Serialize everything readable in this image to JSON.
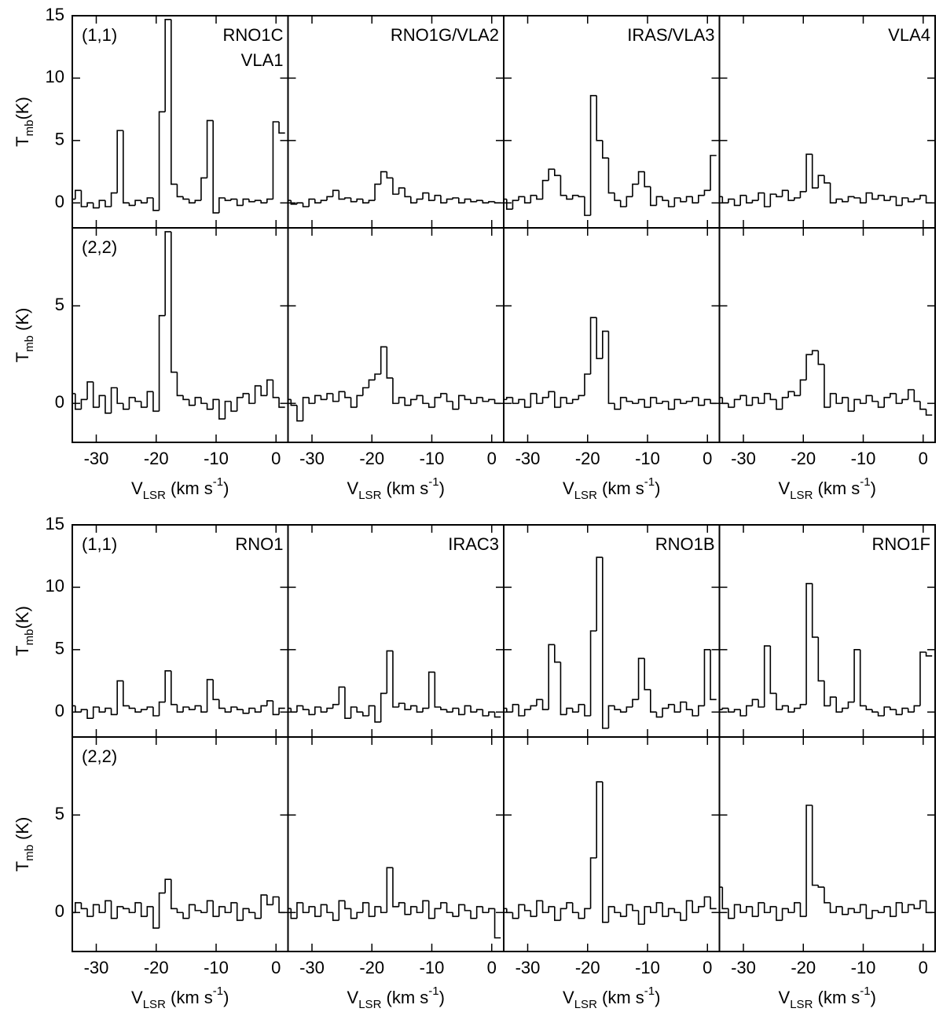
{
  "chart_data": {
    "type": "step",
    "color": "#000000",
    "x": [
      -34,
      -33,
      -32,
      -31,
      -30,
      -29,
      -28,
      -27,
      -26,
      -25,
      -24,
      -23,
      -22,
      -21,
      -20,
      -19,
      -18,
      -17,
      -16,
      -15,
      -14,
      -13,
      -12,
      -11,
      -10,
      -9,
      -8,
      -7,
      -6,
      -5,
      -4,
      -3,
      -2,
      -1,
      0,
      1
    ],
    "xlim": [
      -34,
      2
    ],
    "xticks": [
      -30,
      -20,
      -10,
      0
    ],
    "xlabel": [
      {
        "text": "V"
      },
      {
        "text": "LSR",
        "shift": "sub"
      },
      {
        "text": " (km s"
      },
      {
        "text": "-1",
        "shift": "super"
      },
      {
        "text": ")"
      }
    ],
    "groups": [
      {
        "sources": [
          [
            "RNO1C",
            "VLA1"
          ],
          [
            "RNO1G/VLA2"
          ],
          [
            "IRAS/VLA3"
          ],
          [
            "VLA4"
          ]
        ],
        "rows": [
          {
            "transition": "(1,1)",
            "ylabel": [
              {
                "text": "T"
              },
              {
                "text": "mb",
                "shift": "sub"
              },
              {
                "text": "(K)"
              }
            ],
            "ylim": [
              -2,
              15
            ],
            "yticks": [
              0,
              5,
              10,
              15
            ],
            "spectra": [
              [
                0.3,
                1.0,
                -0.3,
                0.0,
                -0.4,
                0.2,
                -0.3,
                0.8,
                5.8,
                0.0,
                -0.2,
                0.2,
                0.0,
                0.4,
                -0.6,
                7.3,
                14.7,
                1.5,
                0.5,
                0.3,
                0.0,
                0.2,
                2.0,
                6.6,
                -0.8,
                0.4,
                0.2,
                0.3,
                -0.2,
                0.3,
                0.1,
                0.2,
                0.0,
                0.3,
                6.5,
                5.6
              ],
              [
                0.2,
                -0.1,
                0.0,
                -0.3,
                0.3,
                0.0,
                0.2,
                0.5,
                1.0,
                0.3,
                0.4,
                0.1,
                0.3,
                0.0,
                0.2,
                1.5,
                2.5,
                2.0,
                0.7,
                1.2,
                0.5,
                0.0,
                0.3,
                0.8,
                0.2,
                0.6,
                0.0,
                0.3,
                0.4,
                0.0,
                0.3,
                0.1,
                0.2,
                0.0,
                0.1,
                0.0
              ],
              [
                0.3,
                -0.5,
                0.2,
                0.5,
                0.0,
                0.6,
                0.3,
                1.8,
                2.7,
                2.2,
                0.6,
                0.3,
                0.6,
                0.5,
                -1.0,
                8.6,
                5.0,
                3.6,
                0.8,
                0.2,
                -0.3,
                0.5,
                1.5,
                2.5,
                1.3,
                -0.2,
                0.5,
                0.2,
                -0.3,
                0.4,
                0.1,
                0.5,
                0.0,
                0.6,
                1.0,
                3.8
              ],
              [
                0.5,
                0.0,
                0.3,
                -0.2,
                0.6,
                0.0,
                0.2,
                0.8,
                -0.3,
                0.7,
                0.5,
                1.0,
                0.2,
                0.4,
                0.9,
                3.9,
                1.2,
                2.2,
                1.6,
                0.0,
                0.3,
                0.1,
                0.5,
                0.4,
                0.0,
                0.8,
                0.3,
                0.6,
                0.2,
                0.5,
                -0.2,
                0.4,
                0.1,
                0.3,
                0.6,
                0.0
              ]
            ]
          },
          {
            "transition": "(2,2)",
            "ylabel": [
              {
                "text": "T"
              },
              {
                "text": "mb",
                "shift": "sub"
              },
              {
                "text": " (K)"
              }
            ],
            "ylim": [
              -2,
              9
            ],
            "yticks": [
              0,
              5
            ],
            "spectra": [
              [
                0.5,
                -0.3,
                0.2,
                1.1,
                -0.2,
                0.4,
                -0.5,
                0.8,
                0.0,
                -0.3,
                0.3,
                0.1,
                -0.2,
                0.6,
                -0.4,
                4.5,
                8.8,
                1.6,
                0.4,
                0.2,
                -0.1,
                0.3,
                0.0,
                -0.3,
                0.2,
                -0.8,
                0.1,
                -0.4,
                0.3,
                0.5,
                0.0,
                0.9,
                0.4,
                1.2,
                0.3,
                -0.2
              ],
              [
                0.2,
                -0.1,
                -0.9,
                0.3,
                0.0,
                0.4,
                0.2,
                0.5,
                0.1,
                0.6,
                0.3,
                -0.2,
                0.4,
                0.8,
                1.2,
                1.5,
                2.9,
                1.3,
                0.0,
                0.3,
                -0.1,
                0.2,
                0.4,
                0.0,
                -0.2,
                0.3,
                0.5,
                0.1,
                -0.3,
                0.4,
                0.2,
                0.0,
                0.3,
                0.1,
                0.2,
                0.0
              ],
              [
                0.2,
                0.3,
                0.0,
                0.2,
                -0.2,
                0.5,
                0.0,
                0.3,
                0.6,
                -0.2,
                0.3,
                0.0,
                0.2,
                0.4,
                1.5,
                4.4,
                2.3,
                3.7,
                0.0,
                -0.3,
                0.3,
                0.1,
                0.0,
                0.2,
                -0.2,
                0.3,
                0.0,
                0.1,
                -0.3,
                0.2,
                0.0,
                0.1,
                0.3,
                -0.1,
                0.2,
                0.0
              ],
              [
                0.3,
                0.0,
                -0.2,
                0.2,
                0.4,
                -0.1,
                0.3,
                0.0,
                0.5,
                0.2,
                -0.3,
                0.3,
                0.6,
                0.4,
                1.2,
                2.5,
                2.7,
                2.0,
                -0.2,
                0.5,
                0.0,
                0.3,
                -0.4,
                0.2,
                0.0,
                0.4,
                0.1,
                -0.2,
                0.3,
                0.5,
                0.0,
                0.2,
                0.7,
                0.1,
                -0.3,
                -0.6
              ]
            ]
          }
        ]
      },
      {
        "sources": [
          [
            "RNO1"
          ],
          [
            "IRAC3"
          ],
          [
            "RNO1B"
          ],
          [
            "RNO1F"
          ]
        ],
        "rows": [
          {
            "transition": "(1,1)",
            "ylabel": [
              {
                "text": "T"
              },
              {
                "text": "mb",
                "shift": "sub"
              },
              {
                "text": "(K)"
              }
            ],
            "ylim": [
              -2,
              15
            ],
            "yticks": [
              0,
              5,
              10,
              15
            ],
            "spectra": [
              [
                0.5,
                0.0,
                0.2,
                -0.5,
                0.4,
                0.0,
                0.3,
                -0.2,
                2.5,
                0.5,
                0.3,
                0.0,
                0.2,
                0.4,
                -0.3,
                0.8,
                3.3,
                0.6,
                0.0,
                0.4,
                0.2,
                0.5,
                0.0,
                2.6,
                1.0,
                0.3,
                0.0,
                0.4,
                0.2,
                -0.1,
                0.3,
                0.0,
                0.5,
                0.9,
                -0.2,
                0.3
              ],
              [
                0.3,
                0.0,
                0.5,
                0.2,
                -0.2,
                0.4,
                0.0,
                0.3,
                0.6,
                2.0,
                -0.5,
                0.4,
                0.0,
                -0.3,
                0.5,
                -0.8,
                1.5,
                4.9,
                0.4,
                0.7,
                0.2,
                0.5,
                0.0,
                0.3,
                3.2,
                0.4,
                0.2,
                0.0,
                0.3,
                -0.2,
                0.5,
                0.0,
                0.2,
                -0.3,
                0.0,
                -0.4
              ],
              [
                0.3,
                0.0,
                0.6,
                -0.3,
                0.2,
                0.5,
                1.0,
                0.2,
                5.4,
                4.0,
                -0.2,
                0.3,
                0.0,
                0.6,
                -0.3,
                6.5,
                12.4,
                -1.3,
                0.5,
                0.2,
                0.0,
                0.4,
                1.0,
                4.3,
                1.8,
                0.0,
                -0.4,
                0.3,
                0.6,
                0.0,
                0.8,
                0.2,
                -0.3,
                0.5,
                5.0,
                1.0
              ],
              [
                0.2,
                0.3,
                0.0,
                0.2,
                -0.3,
                0.5,
                1.0,
                0.4,
                5.3,
                1.5,
                0.2,
                0.5,
                0.0,
                0.3,
                0.6,
                10.3,
                6.0,
                2.5,
                0.5,
                1.2,
                0.0,
                0.3,
                0.8,
                5.0,
                0.5,
                0.2,
                0.0,
                -0.3,
                0.4,
                0.2,
                -0.2,
                0.3,
                0.0,
                0.5,
                4.8,
                4.5
              ]
            ]
          },
          {
            "transition": "(2,2)",
            "ylabel": [
              {
                "text": "T"
              },
              {
                "text": "mb",
                "shift": "sub"
              },
              {
                "text": " (K)"
              }
            ],
            "ylim": [
              -2,
              9
            ],
            "yticks": [
              0,
              5
            ],
            "spectra": [
              [
                0.0,
                0.5,
                0.2,
                -0.2,
                0.4,
                0.0,
                0.6,
                -0.3,
                0.3,
                0.2,
                0.0,
                0.5,
                -0.2,
                0.3,
                -0.8,
                1.0,
                1.7,
                0.2,
                0.0,
                -0.3,
                0.4,
                0.1,
                0.0,
                0.6,
                -0.2,
                0.3,
                0.0,
                0.5,
                -0.4,
                0.2,
                0.0,
                -0.3,
                0.9,
                0.4,
                0.8,
                0.0
              ],
              [
                0.2,
                -0.3,
                0.5,
                0.0,
                0.3,
                -0.2,
                0.4,
                0.0,
                -0.4,
                0.6,
                0.2,
                -0.3,
                0.0,
                0.5,
                -0.2,
                0.3,
                0.0,
                2.3,
                0.3,
                0.5,
                -0.1,
                0.3,
                0.0,
                0.6,
                -0.3,
                0.2,
                0.5,
                0.0,
                -0.2,
                0.4,
                0.1,
                -0.3,
                0.3,
                0.0,
                0.2,
                -1.3
              ],
              [
                0.2,
                0.0,
                -0.3,
                0.4,
                0.1,
                -0.2,
                0.6,
                0.0,
                0.3,
                -0.4,
                0.2,
                0.5,
                0.0,
                -0.3,
                0.2,
                2.8,
                6.7,
                -0.5,
                0.3,
                0.0,
                -0.2,
                0.4,
                0.1,
                -0.6,
                0.3,
                0.0,
                0.5,
                -0.2,
                0.2,
                0.0,
                -0.4,
                0.6,
                0.0,
                0.3,
                0.8,
                0.2
              ],
              [
                1.3,
                0.2,
                -0.3,
                0.4,
                0.0,
                0.3,
                -0.2,
                0.5,
                0.0,
                0.3,
                -0.4,
                0.2,
                0.0,
                0.5,
                -0.2,
                5.5,
                1.4,
                1.3,
                0.5,
                0.0,
                0.3,
                -0.1,
                0.2,
                0.0,
                0.4,
                -0.3,
                0.1,
                0.0,
                0.3,
                -0.2,
                0.5,
                0.0,
                0.4,
                0.2,
                0.6,
                0.0
              ]
            ]
          }
        ]
      }
    ]
  }
}
